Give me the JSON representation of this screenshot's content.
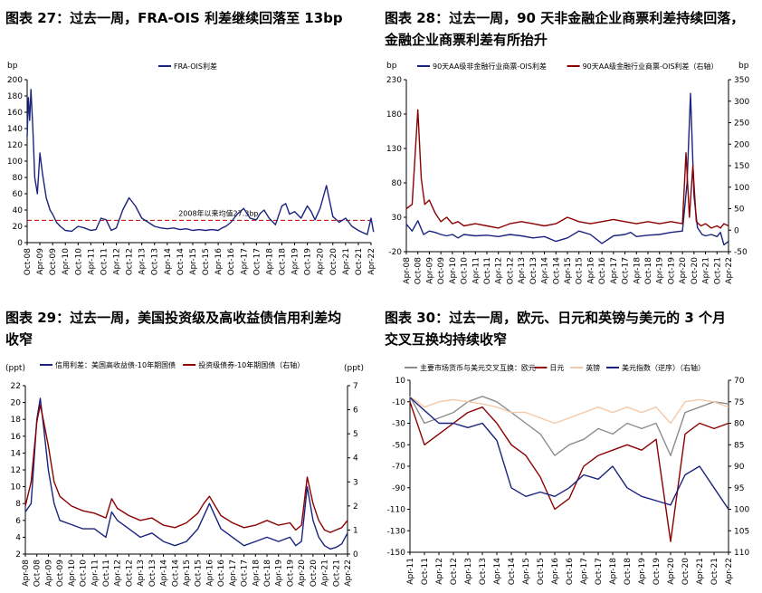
{
  "titles": {
    "p27": "图表 27：过去一周，FRA-OIS 利差继续回落至 13bp",
    "p28": "图表 28：过去一周，90 天非金融企业商票利差持续回落，\n金融企业商票利差有所抬升",
    "p29": "图表 29：过去一周，美国投资级及高收益债信用利差均\n收窄",
    "p30": "图表 30：过去一周，欧元、日元和英镑与美元的 3 个月\n交叉互换均持续收窄"
  },
  "chart_data": [
    {
      "id": "p27",
      "type": "line",
      "unit_label": "bp",
      "x_ticks": [
        "Oct-08",
        "Apr-09",
        "Oct-09",
        "Apr-10",
        "Oct-10",
        "Apr-11",
        "Oct-11",
        "Apr-12",
        "Oct-12",
        "Apr-13",
        "Oct-13",
        "Apr-14",
        "Oct-14",
        "Apr-15",
        "Oct-15",
        "Apr-16",
        "Oct-16",
        "Apr-17",
        "Oct-17",
        "Apr-18",
        "Oct-18",
        "Apr-19",
        "Oct-19",
        "Apr-20",
        "Oct-20",
        "Apr-21",
        "Oct-21",
        "Apr-22"
      ],
      "ylim": [
        0,
        200
      ],
      "y_ticks": [
        0,
        20,
        40,
        60,
        80,
        100,
        120,
        140,
        160,
        180,
        200
      ],
      "reference_line": {
        "value": 27.3,
        "label": "2008年以来均值27.3bp",
        "color": "#c00000"
      },
      "series": [
        {
          "name": "FRA-OIS利差",
          "color": "#1a237e",
          "x": [
            0,
            0.1,
            0.2,
            0.3,
            0.45,
            0.6,
            0.8,
            1.0,
            1.2,
            1.5,
            1.8,
            2.0,
            2.3,
            2.6,
            3.0,
            3.5,
            4.0,
            4.5,
            5.0,
            5.4,
            5.8,
            6.2,
            6.6,
            7.0,
            7.5,
            8.0,
            8.5,
            9.0,
            9.5,
            10.0,
            10.5,
            11.0,
            11.5,
            12.0,
            12.5,
            13.0,
            13.5,
            14.0,
            14.5,
            15.0,
            15.3,
            15.6,
            16.0,
            16.5,
            17.0,
            17.5,
            18.0,
            18.3,
            18.6,
            19.0,
            19.5,
            20.0,
            20.3,
            20.6,
            21.0,
            21.5,
            22.0,
            22.3,
            22.6,
            23.0,
            23.5,
            24.0,
            24.5,
            25.0,
            25.5,
            26.0,
            26.4,
            26.7,
            27.0,
            27.2
          ],
          "values": [
            130,
            178,
            150,
            188,
            140,
            80,
            60,
            110,
            85,
            55,
            40,
            35,
            25,
            20,
            15,
            14,
            20,
            18,
            15,
            16,
            30,
            28,
            15,
            18,
            40,
            55,
            45,
            30,
            25,
            20,
            18,
            17,
            18,
            16,
            17,
            15,
            16,
            15,
            16,
            15,
            18,
            20,
            25,
            35,
            42,
            30,
            28,
            36,
            40,
            30,
            22,
            45,
            48,
            35,
            38,
            30,
            45,
            38,
            28,
            42,
            70,
            32,
            25,
            30,
            20,
            15,
            12,
            10,
            30,
            13
          ]
        }
      ]
    },
    {
      "id": "p28",
      "type": "line",
      "unit_label": "bp",
      "x_ticks": [
        "Apr-08",
        "Oct-08",
        "Apr-09",
        "Oct-09",
        "Apr-10",
        "Oct-10",
        "Apr-11",
        "Oct-11",
        "Apr-12",
        "Oct-12",
        "Apr-13",
        "Oct-13",
        "Apr-14",
        "Oct-14",
        "Apr-15",
        "Oct-15",
        "Apr-16",
        "Oct-16",
        "Apr-17",
        "Oct-17",
        "Apr-18",
        "Oct-18",
        "Apr-19",
        "Oct-19",
        "Apr-20",
        "Oct-20",
        "Apr-21",
        "Oct-21",
        "Apr-22"
      ],
      "ylim_left": [
        -20,
        230
      ],
      "y_ticks_left": [
        -20,
        30,
        80,
        130,
        180,
        230
      ],
      "ylim_right": [
        -50,
        350
      ],
      "y_ticks_right": [
        -50,
        0,
        50,
        100,
        150,
        200,
        250,
        300,
        350
      ],
      "series": [
        {
          "name": "90天AA级非金融行业商票-OIS利差",
          "axis": "left",
          "color": "#1a237e",
          "x": [
            0,
            0.5,
            1.0,
            1.5,
            2.0,
            2.5,
            3.0,
            3.5,
            4.0,
            4.5,
            5,
            6,
            7,
            8,
            9,
            10,
            11,
            12,
            13,
            14,
            15,
            16,
            17,
            18,
            19,
            19.5,
            20,
            21,
            22,
            23,
            24,
            24.4,
            24.7,
            25.0,
            25.3,
            25.7,
            26,
            26.5,
            27,
            27.3,
            27.6,
            28
          ],
          "values": [
            20,
            10,
            25,
            5,
            10,
            8,
            5,
            3,
            5,
            0,
            5,
            3,
            4,
            2,
            5,
            3,
            0,
            2,
            -5,
            0,
            10,
            5,
            -8,
            3,
            5,
            8,
            2,
            4,
            5,
            8,
            10,
            80,
            210,
            60,
            15,
            5,
            3,
            5,
            2,
            8,
            -10,
            -5
          ]
        },
        {
          "name": "90天AA级金融行业商票-OIS利差（右轴）",
          "axis": "right",
          "color": "#8b0000",
          "x": [
            0,
            0.5,
            1.0,
            1.3,
            1.6,
            2.0,
            2.5,
            3.0,
            3.5,
            4.0,
            4.5,
            5,
            6,
            7,
            8,
            9,
            10,
            11,
            12,
            13,
            14,
            15,
            16,
            17,
            18,
            19,
            20,
            21,
            22,
            23,
            24,
            24.3,
            24.6,
            24.9,
            25.2,
            25.6,
            26,
            26.5,
            27,
            27.3,
            27.6,
            28
          ],
          "values": [
            50,
            60,
            280,
            120,
            60,
            70,
            40,
            20,
            30,
            15,
            20,
            10,
            15,
            10,
            5,
            15,
            20,
            15,
            10,
            15,
            30,
            20,
            15,
            20,
            25,
            20,
            15,
            20,
            15,
            20,
            15,
            180,
            30,
            150,
            20,
            10,
            15,
            5,
            10,
            5,
            15,
            10
          ]
        }
      ]
    },
    {
      "id": "p29",
      "type": "line",
      "unit_label_left": "(ppt)",
      "unit_label_right": "(ppt)",
      "x_ticks": [
        "Apr-08",
        "Oct-08",
        "Apr-09",
        "Oct-09",
        "Apr-10",
        "Oct-10",
        "Apr-11",
        "Oct-11",
        "Apr-12",
        "Oct-12",
        "Apr-13",
        "Oct-13",
        "Apr-14",
        "Oct-14",
        "Apr-15",
        "Oct-15",
        "Apr-16",
        "Oct-16",
        "Apr-17",
        "Oct-17",
        "Apr-18",
        "Oct-18",
        "Apr-19",
        "Oct-19",
        "Apr-20",
        "Oct-20",
        "Apr-21",
        "Oct-21",
        "Apr-22"
      ],
      "ylim_left": [
        2,
        22
      ],
      "y_ticks_left": [
        2,
        4,
        6,
        8,
        10,
        12,
        14,
        16,
        18,
        20,
        22
      ],
      "ylim_right": [
        0,
        7
      ],
      "y_ticks_right": [
        0,
        1,
        2,
        3,
        4,
        5,
        6,
        7
      ],
      "series": [
        {
          "name": "信用利差：美国高收益债-10年期国债",
          "axis": "left",
          "color": "#1a237e",
          "x": [
            0,
            0.5,
            1.0,
            1.3,
            1.6,
            2.0,
            2.5,
            3,
            4,
            5,
            6,
            7,
            7.5,
            8,
            9,
            10,
            11,
            12,
            13,
            14,
            15,
            15.5,
            16,
            17,
            18,
            19,
            20,
            21,
            22,
            23,
            23.5,
            24,
            24.5,
            25,
            25.5,
            26,
            26.5,
            27,
            27.5,
            28
          ],
          "values": [
            7,
            8,
            18,
            20.5,
            17,
            12,
            8,
            6,
            5.5,
            5,
            5,
            4,
            7,
            6,
            5,
            4,
            4.5,
            3.5,
            3,
            3.5,
            5,
            6.5,
            8,
            5,
            4,
            3,
            3.5,
            4,
            3.5,
            4,
            3,
            3.5,
            10,
            6,
            4,
            3,
            2.6,
            2.8,
            3.2,
            4.5
          ]
        },
        {
          "name": "投资级债券-10年期国债（右轴）",
          "axis": "right",
          "color": "#8b0000",
          "x": [
            0,
            0.5,
            1.0,
            1.3,
            1.6,
            2.0,
            2.5,
            3,
            4,
            5,
            6,
            7,
            7.5,
            8,
            9,
            10,
            11,
            12,
            13,
            14,
            15,
            15.5,
            16,
            17,
            18,
            19,
            20,
            21,
            22,
            23,
            23.5,
            24,
            24.5,
            25,
            25.5,
            26,
            26.5,
            27,
            27.5,
            28
          ],
          "values": [
            2,
            3,
            5.5,
            6.2,
            5.5,
            4.5,
            3,
            2.4,
            2,
            1.8,
            1.7,
            1.5,
            2.3,
            1.9,
            1.6,
            1.4,
            1.5,
            1.2,
            1.1,
            1.3,
            1.7,
            2.1,
            2.4,
            1.6,
            1.3,
            1.1,
            1.2,
            1.4,
            1.2,
            1.3,
            1.0,
            1.2,
            3.2,
            2.1,
            1.4,
            1.0,
            0.9,
            1.0,
            1.1,
            1.4
          ]
        }
      ]
    },
    {
      "id": "p30",
      "type": "line",
      "x_ticks": [
        "Apr-11",
        "Oct-11",
        "Apr-12",
        "Oct-12",
        "Apr-13",
        "Oct-13",
        "Apr-14",
        "Oct-14",
        "Apr-15",
        "Oct-15",
        "Apr-16",
        "Oct-16",
        "Apr-17",
        "Oct-17",
        "Apr-18",
        "Oct-18",
        "Apr-19",
        "Oct-19",
        "Apr-20",
        "Oct-20",
        "Apr-21",
        "Oct-21",
        "Apr-22"
      ],
      "ylim_left": [
        -150,
        10
      ],
      "y_ticks_left": [
        -150,
        -130,
        -110,
        -90,
        -70,
        -50,
        -30,
        -10,
        10
      ],
      "ylim_right_inverted": [
        70,
        110
      ],
      "y_ticks_right": [
        70,
        75,
        80,
        85,
        90,
        95,
        100,
        105,
        110
      ],
      "series": [
        {
          "name": "主要市场货币与美元交叉互换：欧元",
          "axis": "left",
          "color": "#8c8c8c",
          "x": [
            0,
            1,
            2,
            3,
            4,
            5,
            6,
            7,
            8,
            9,
            10,
            11,
            12,
            13,
            14,
            15,
            16,
            17,
            18,
            19,
            20,
            21,
            22
          ],
          "values": [
            -5,
            -30,
            -25,
            -20,
            -10,
            -5,
            -10,
            -20,
            -30,
            -40,
            -60,
            -50,
            -45,
            -35,
            -40,
            -30,
            -35,
            -30,
            -60,
            -20,
            -15,
            -10,
            -12
          ]
        },
        {
          "name": "日元",
          "axis": "left",
          "color": "#8b0000",
          "x": [
            0,
            1,
            2,
            3,
            4,
            5,
            6,
            7,
            8,
            9,
            10,
            11,
            12,
            13,
            14,
            15,
            16,
            17,
            18,
            19,
            20,
            21,
            22
          ],
          "values": [
            -10,
            -50,
            -40,
            -30,
            -20,
            -15,
            -30,
            -50,
            -60,
            -80,
            -110,
            -100,
            -70,
            -60,
            -55,
            -50,
            -55,
            -45,
            -140,
            -40,
            -30,
            -35,
            -30
          ]
        },
        {
          "name": "英镑",
          "axis": "left",
          "color": "#f4c9a8",
          "x": [
            0,
            1,
            2,
            3,
            4,
            5,
            6,
            7,
            8,
            9,
            10,
            11,
            12,
            13,
            14,
            15,
            16,
            17,
            18,
            19,
            20,
            21,
            22
          ],
          "values": [
            -5,
            -15,
            -10,
            -8,
            -10,
            -12,
            -15,
            -20,
            -20,
            -25,
            -30,
            -25,
            -20,
            -15,
            -20,
            -15,
            -20,
            -15,
            -30,
            -10,
            -8,
            -10,
            -15
          ]
        },
        {
          "name": "美元指数（逆序）（右轴）",
          "axis": "right",
          "color": "#1a237e",
          "x": [
            0,
            1,
            2,
            3,
            4,
            5,
            6,
            7,
            8,
            9,
            10,
            11,
            12,
            13,
            14,
            15,
            16,
            17,
            18,
            19,
            20,
            21,
            22
          ],
          "values": [
            74,
            77,
            80,
            80,
            81,
            80,
            84,
            95,
            97,
            96,
            97,
            95,
            92,
            93,
            90,
            95,
            97,
            98,
            99,
            92,
            90,
            95,
            100
          ]
        }
      ]
    }
  ]
}
